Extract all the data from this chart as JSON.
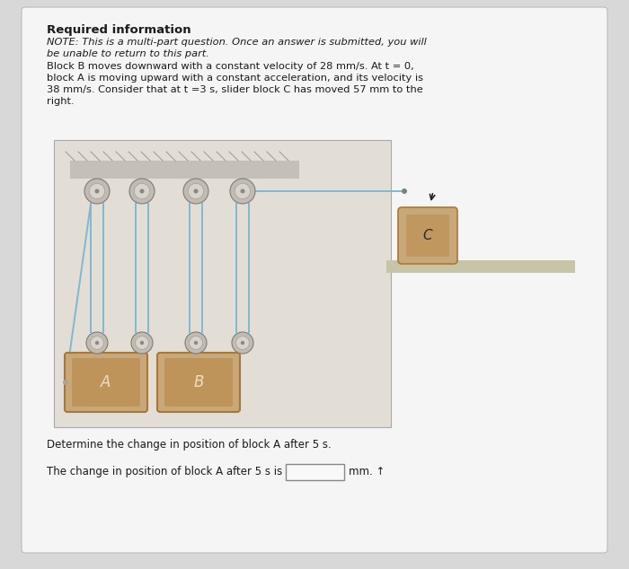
{
  "title": "Required information",
  "note_italic1": "NOTE: This is a multi-part question. Once an answer is submitted, you will",
  "note_italic2": "be unable to return to this part.",
  "body_line1": "Block B moves downward with a constant velocity of 28 mm/s. At t = 0,",
  "body_line2": "block A is moving upward with a constant acceleration, and its velocity is",
  "body_line3": "38 mm/s. Consider that at t =3 s, slider block C has moved 57 mm to the",
  "body_line4": "right.",
  "question": "Determine the change in position of block A after 5 s.",
  "answer_prefix": "The change in position of block A after 5 s is",
  "answer_unit": "mm. ↑",
  "bg_page": "#d8d8d8",
  "bg_card": "#f5f5f5",
  "bg_diagram": "#e2ddd5",
  "ceiling_color": "#c4c0b8",
  "pulley_outer": "#c0bcb4",
  "pulley_mid": "#d8d4cc",
  "pulley_inner_dot": "#888884",
  "rope_color": "#80b8d0",
  "block_face": "#c8a878",
  "block_inner": "#b88848",
  "block_border": "#a87838",
  "shelf_color": "#c8c4a8",
  "block_C_face": "#c8a878",
  "text_color": "#1a1a1a"
}
